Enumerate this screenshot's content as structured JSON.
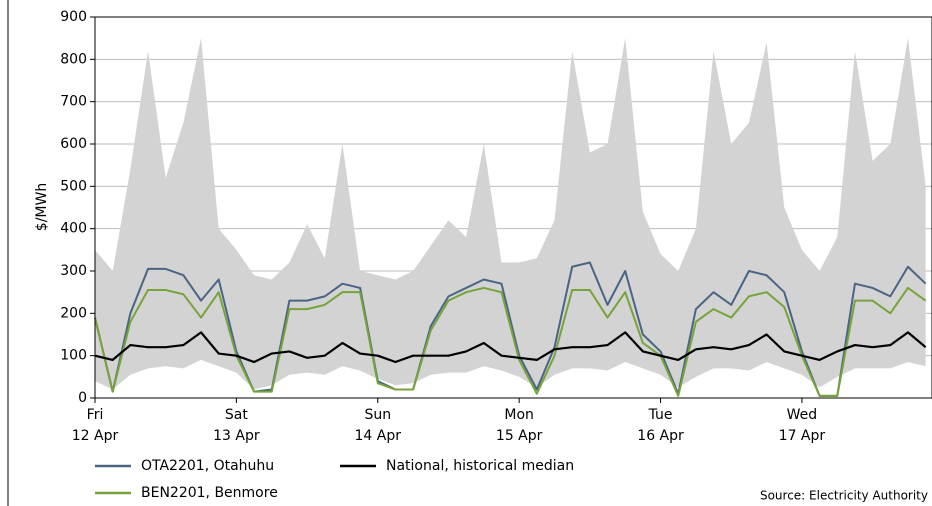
{
  "chart_data": {
    "type": "line",
    "y_label": "$/MWh",
    "source": "Source: Electricity Authority",
    "x": [
      0,
      0.125,
      0.25,
      0.375,
      0.5,
      0.625,
      0.75,
      0.875,
      1,
      1.125,
      1.25,
      1.375,
      1.5,
      1.625,
      1.75,
      1.875,
      2,
      2.125,
      2.25,
      2.375,
      2.5,
      2.625,
      2.75,
      2.875,
      3,
      3.125,
      3.25,
      3.375,
      3.5,
      3.625,
      3.75,
      3.875,
      4,
      4.125,
      4.25,
      4.375,
      4.5,
      4.625,
      4.75,
      4.875,
      5,
      5.125,
      5.25,
      5.375,
      5.5,
      5.625,
      5.75,
      5.875
    ],
    "xlim": [
      0,
      5.92
    ],
    "xticks": [
      {
        "value": 0,
        "label": [
          "Fri",
          "12 Apr"
        ]
      },
      {
        "value": 1,
        "label": [
          "Sat",
          "13 Apr"
        ]
      },
      {
        "value": 2,
        "label": [
          "Sun",
          "14 Apr"
        ]
      },
      {
        "value": 3,
        "label": [
          "Mon",
          "15 Apr"
        ]
      },
      {
        "value": 4,
        "label": [
          "Tue",
          "16 Apr"
        ]
      },
      {
        "value": 5,
        "label": [
          "Wed",
          "17 Apr"
        ]
      }
    ],
    "ylim": [
      0,
      900
    ],
    "yticks": [
      0,
      100,
      200,
      300,
      400,
      500,
      600,
      700,
      800,
      900
    ],
    "grid": true,
    "band": {
      "color": "#d3d3d3",
      "upper": [
        350,
        300,
        540,
        820,
        520,
        650,
        850,
        400,
        350,
        290,
        280,
        320,
        410,
        330,
        600,
        300,
        290,
        280,
        300,
        360,
        420,
        380,
        600,
        320,
        320,
        330,
        420,
        820,
        580,
        600,
        850,
        440,
        340,
        300,
        400,
        820,
        600,
        650,
        840,
        450,
        350,
        300,
        380,
        820,
        560,
        600,
        850,
        500
      ],
      "lower": [
        40,
        20,
        55,
        70,
        75,
        70,
        90,
        75,
        60,
        20,
        30,
        55,
        60,
        55,
        75,
        65,
        45,
        30,
        35,
        55,
        60,
        60,
        75,
        65,
        50,
        25,
        55,
        70,
        70,
        65,
        85,
        70,
        55,
        25,
        50,
        70,
        70,
        65,
        85,
        70,
        55,
        25,
        50,
        70,
        70,
        70,
        85,
        75
      ]
    },
    "series": [
      {
        "name": "OTA2201, Otahuhu",
        "color": "#4a6583",
        "values": [
          190,
          15,
          200,
          305,
          305,
          290,
          230,
          280,
          110,
          15,
          20,
          230,
          230,
          240,
          270,
          260,
          40,
          20,
          20,
          170,
          240,
          260,
          280,
          270,
          100,
          20,
          120,
          310,
          320,
          220,
          300,
          150,
          110,
          10,
          210,
          250,
          220,
          300,
          290,
          250,
          110,
          5,
          5,
          270,
          260,
          240,
          310,
          270
        ]
      },
      {
        "name": "National, historical median",
        "color": "#000000",
        "values": [
          100,
          90,
          125,
          120,
          120,
          125,
          155,
          105,
          100,
          85,
          105,
          110,
          95,
          100,
          130,
          105,
          100,
          85,
          100,
          100,
          100,
          110,
          130,
          100,
          95,
          90,
          115,
          120,
          120,
          125,
          155,
          110,
          100,
          90,
          115,
          120,
          115,
          125,
          150,
          110,
          100,
          90,
          110,
          125,
          120,
          125,
          155,
          120
        ]
      },
      {
        "name": "BEN2201, Benmore",
        "color": "#76a33a",
        "values": [
          190,
          15,
          180,
          255,
          255,
          245,
          190,
          250,
          100,
          15,
          15,
          210,
          210,
          220,
          250,
          250,
          35,
          20,
          20,
          160,
          230,
          250,
          260,
          250,
          90,
          10,
          100,
          255,
          255,
          190,
          250,
          130,
          100,
          5,
          180,
          210,
          190,
          240,
          250,
          215,
          100,
          5,
          5,
          230,
          230,
          200,
          260,
          230
        ]
      }
    ]
  }
}
